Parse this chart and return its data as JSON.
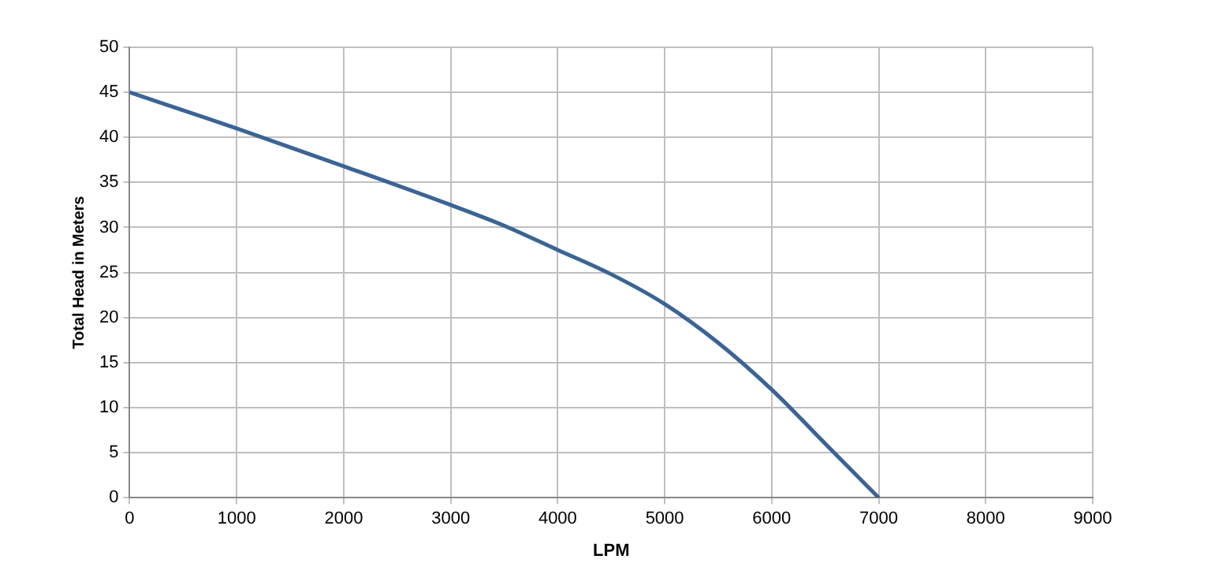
{
  "chart_data": {
    "type": "line",
    "xlabel": "LPM",
    "ylabel": "Total Head in Meters",
    "x": [
      0,
      1000,
      2000,
      3000,
      3500,
      4000,
      4500,
      5000,
      5500,
      6000,
      6500,
      7000
    ],
    "series": [
      {
        "color": "#3b6496",
        "values": [
          45,
          41,
          36.8,
          32.5,
          30.2,
          27.5,
          24.8,
          21.5,
          17.2,
          12,
          6,
          0
        ]
      }
    ],
    "xlim": [
      0,
      9000
    ],
    "xticks": [
      0,
      1000,
      2000,
      3000,
      4000,
      5000,
      6000,
      7000,
      8000,
      9000
    ],
    "ylim": [
      0,
      50
    ],
    "yticks": [
      0,
      5,
      10,
      15,
      20,
      25,
      30,
      35,
      40,
      45,
      50
    ],
    "grid": true,
    "legend": false,
    "marker": "none",
    "line_style": "solid"
  }
}
